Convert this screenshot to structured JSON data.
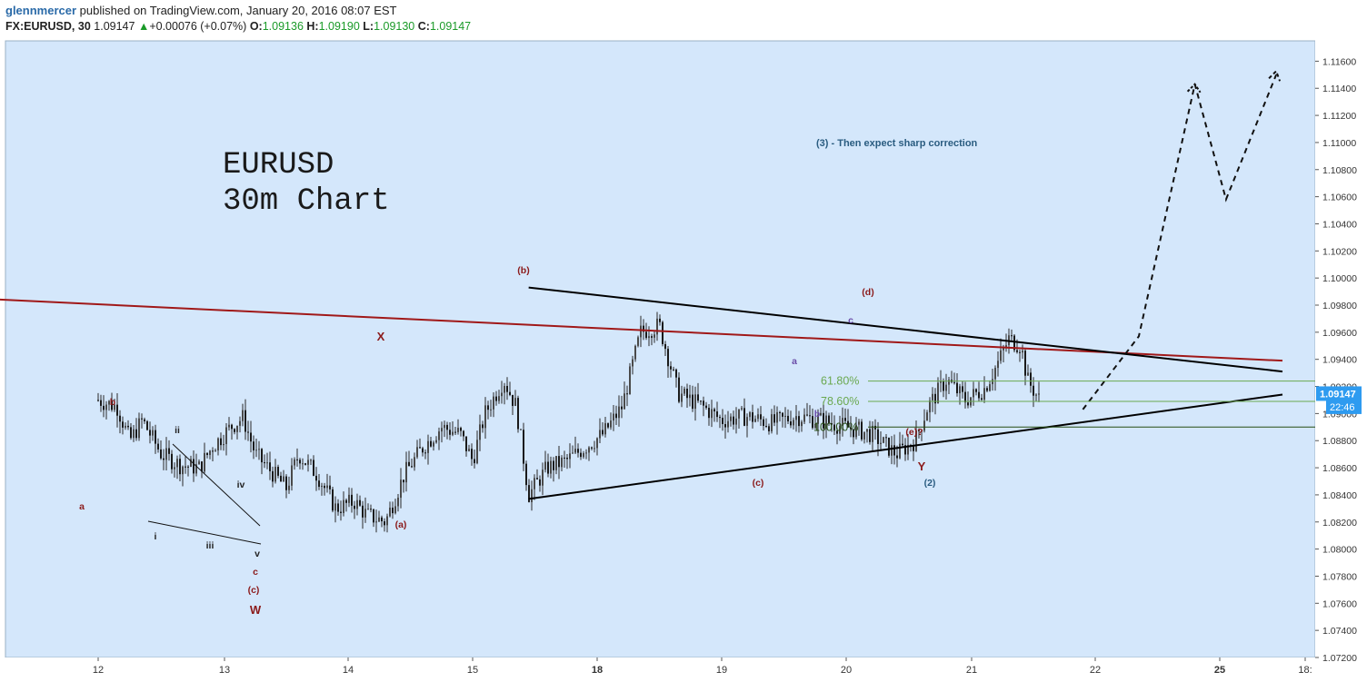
{
  "header": {
    "user": "glennmercer",
    "published_text": "published on TradingView.com, January 20, 2016 08:07 EST",
    "symbol": "FX:EURUSD, 30",
    "last": "1.09147",
    "change": "+0.00076 (+0.07%)",
    "open_label": "O:",
    "open": "1.09136",
    "high_label": "H:",
    "high": "1.09190",
    "low_label": "L:",
    "low": "1.09130",
    "close_label": "C:",
    "close": "1.09147"
  },
  "title_lines": [
    "EURUSD",
    "30m Chart"
  ],
  "chart_data": {
    "type": "candlestick",
    "y_axis": {
      "min": 1.072,
      "max": 1.1175,
      "ticks": [
        "1.11600",
        "1.11400",
        "1.11200",
        "1.11000",
        "1.10800",
        "1.10600",
        "1.10400",
        "1.10200",
        "1.10000",
        "1.09800",
        "1.09600",
        "1.09400",
        "1.09200",
        "1.09000",
        "1.08800",
        "1.08600",
        "1.08400",
        "1.08200",
        "1.08000",
        "1.07800",
        "1.07600",
        "1.07400",
        "1.07200"
      ]
    },
    "x_axis": {
      "labels": [
        "12",
        "13",
        "14",
        "15",
        "18",
        "19",
        "20",
        "21",
        "22",
        "25",
        "18:"
      ],
      "bold": [
        "18",
        "25"
      ]
    },
    "price_badge": "1.09147",
    "time_badge": "22:46",
    "price_path": [
      [
        "11.00",
        1.091
      ],
      [
        "11.15",
        1.0905
      ],
      [
        "11.25",
        1.088
      ],
      [
        "11.35",
        1.0895
      ],
      [
        "11.50",
        1.087
      ],
      [
        "11.65",
        1.0862
      ],
      [
        "11.80",
        1.086
      ],
      [
        "11.90",
        1.0875
      ],
      [
        "12.05",
        1.089
      ],
      [
        "12.15",
        1.0897
      ],
      [
        "12.25",
        1.087
      ],
      [
        "12.40",
        1.0855
      ],
      [
        "12.50",
        1.0845
      ],
      [
        "12.60",
        1.087
      ],
      [
        "12.75",
        1.0855
      ],
      [
        "12.90",
        1.083
      ],
      [
        "13.05",
        1.0835
      ],
      [
        "13.15",
        1.0825
      ],
      [
        "13.30",
        1.082
      ],
      [
        "13.45",
        1.0855
      ],
      [
        "13.60",
        1.0875
      ],
      [
        "13.75",
        1.089
      ],
      [
        "13.90",
        1.0885
      ],
      [
        "14.00",
        1.0865
      ],
      [
        "14.10",
        1.09
      ],
      [
        "14.25",
        1.0925
      ],
      [
        "14.35",
        1.0905
      ],
      [
        "14.45",
        1.084
      ],
      [
        "14.60",
        1.086
      ],
      [
        "14.75",
        1.0865
      ],
      [
        "14.90",
        1.0875
      ],
      [
        "15.05",
        1.0885
      ],
      [
        "15.20",
        1.0905
      ],
      [
        "15.35",
        1.096
      ],
      [
        "15.50",
        1.0965
      ],
      [
        "15.65",
        1.0915
      ],
      [
        "15.85",
        1.0905
      ],
      [
        "16.00",
        1.0895
      ],
      [
        "16.20",
        1.0898
      ],
      [
        "16.40",
        1.0893
      ],
      [
        "16.60",
        1.0898
      ],
      [
        "16.80",
        1.0895
      ],
      [
        "17.00",
        1.089
      ],
      [
        "17.20",
        1.0885
      ],
      [
        "17.40",
        1.087
      ],
      [
        "17.55",
        1.088
      ],
      [
        "17.65",
        1.0905
      ],
      [
        "17.80",
        1.0925
      ],
      [
        "17.95",
        1.091
      ],
      [
        "18.10",
        1.0918
      ],
      [
        "18.20",
        1.0935
      ],
      [
        "18.30",
        1.0955
      ],
      [
        "18.40",
        1.095
      ],
      [
        "18.45",
        1.0925
      ],
      [
        "18.55",
        1.091
      ]
    ],
    "trendlines": [
      {
        "name": "red-trendline",
        "color": "#a01818",
        "from": [
          "10.00",
          1.0985
        ],
        "to": [
          "20.50",
          1.0939
        ]
      },
      {
        "name": "upper-triangle-line",
        "color": "#000000",
        "from": [
          "14.45",
          1.0993
        ],
        "to": [
          "20.50",
          1.0931
        ]
      },
      {
        "name": "lower-triangle-line",
        "color": "#000000",
        "from": [
          "14.45",
          1.0837
        ],
        "to": [
          "20.50",
          1.0914
        ]
      }
    ],
    "projection": [
      [
        "18.90",
        1.0903
      ],
      [
        "19.35",
        1.0957
      ],
      [
        "19.80",
        1.1143
      ],
      [
        "20.05",
        1.1058
      ],
      [
        "20.45",
        1.115
      ]
    ],
    "fib_levels": [
      {
        "label": "61.80%",
        "value": 1.0924,
        "color": "#6aa84f"
      },
      {
        "label": "78.60%",
        "value": 1.0909,
        "color": "#6aa84f"
      },
      {
        "label": "100.00%",
        "value": 1.089,
        "color": "#274e13"
      }
    ],
    "wave_labels": [
      {
        "text": "b",
        "color": "#8b1a1a"
      },
      {
        "text": "a",
        "color": "#8b1a1a"
      },
      {
        "text": "ii",
        "color": "#222222"
      },
      {
        "text": "i",
        "color": "#222222"
      },
      {
        "text": "iii",
        "color": "#222222"
      },
      {
        "text": "iv",
        "color": "#222222"
      },
      {
        "text": "v",
        "color": "#222222"
      },
      {
        "text": "c",
        "color": "#8b1a1a"
      },
      {
        "text": "(c)",
        "color": "#8b1a1a"
      },
      {
        "text": "W",
        "color": "#8b1a1a"
      },
      {
        "text": "X",
        "color": "#8b1a1a"
      },
      {
        "text": "(a)",
        "color": "#8b1a1a"
      },
      {
        "text": "(b)",
        "color": "#8b1a1a"
      },
      {
        "text": "(c)",
        "color": "#8b1a1a"
      },
      {
        "text": "a",
        "color": "#6a4ca8"
      },
      {
        "text": "b",
        "color": "#6a4ca8"
      },
      {
        "text": "c",
        "color": "#6a4ca8"
      },
      {
        "text": "(d)",
        "color": "#8b1a1a"
      },
      {
        "text": "(e)?",
        "color": "#8b1a1a"
      },
      {
        "text": "Y",
        "color": "#8b1a1a"
      },
      {
        "text": "(2)",
        "color": "#2a5c80"
      }
    ],
    "annotation": "(3) - Then expect sharp correction",
    "annotation_color": "#2a5c80"
  },
  "colors": {
    "plot_bg": "#d4e7fb",
    "axis_bg": "#ffffff",
    "badge_bg": "#2e9bf0",
    "candle": "#2a2a2a"
  }
}
